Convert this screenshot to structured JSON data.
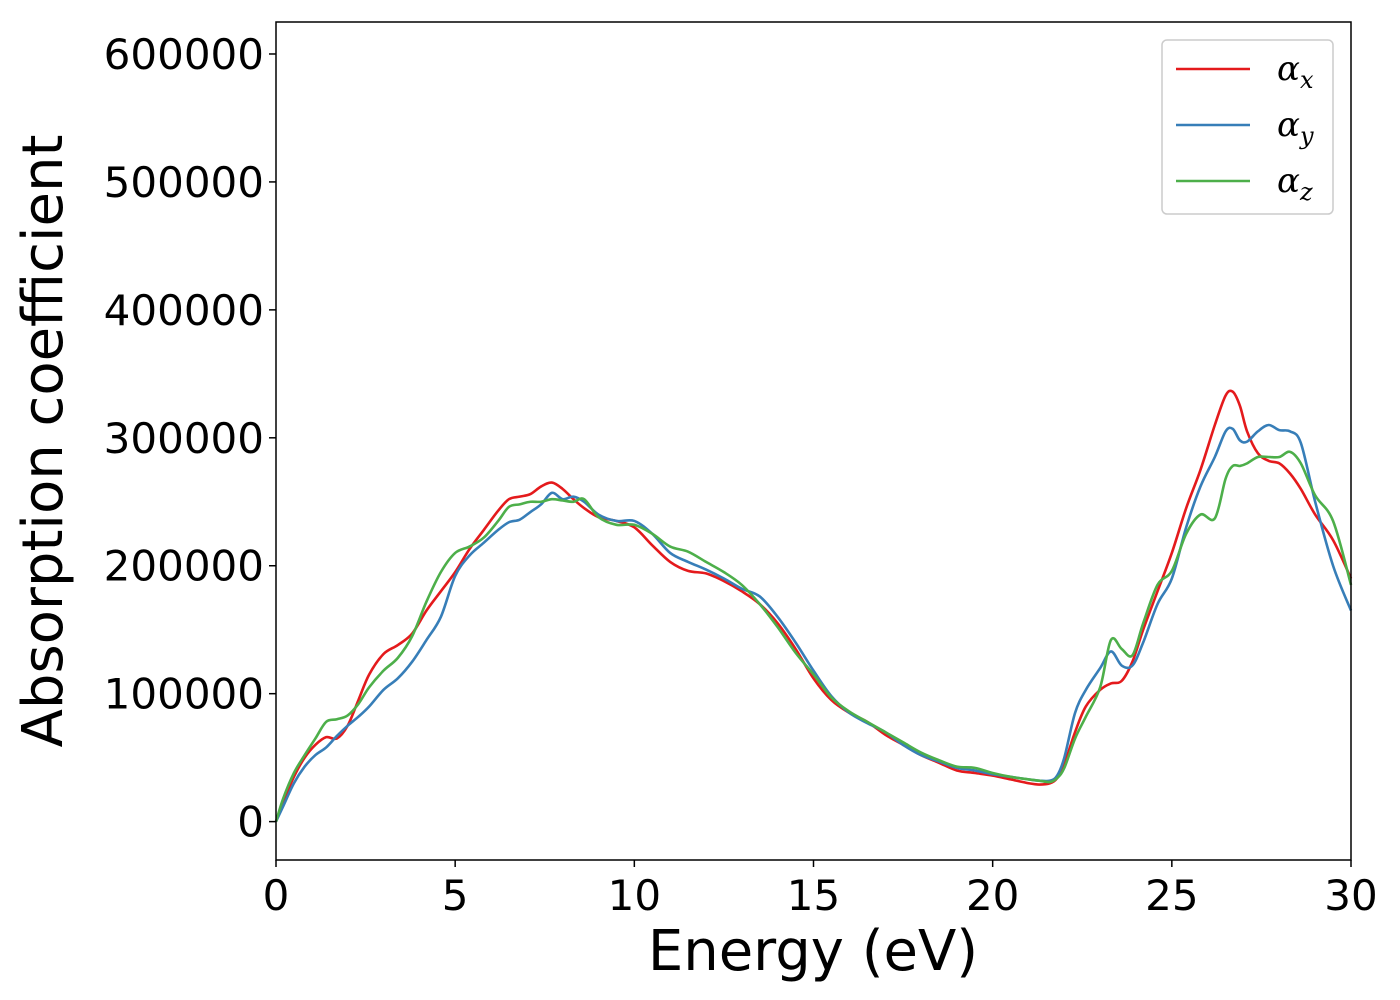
{
  "chart_data": {
    "type": "line",
    "title": "",
    "xlabel": "Energy (eV)",
    "ylabel": "Absorption coefficient",
    "xlim": [
      0,
      30
    ],
    "ylim": [
      -30000,
      625000
    ],
    "xticks": [
      0,
      5,
      10,
      15,
      20,
      25,
      30
    ],
    "xtick_labels": [
      "0",
      "5",
      "10",
      "15",
      "20",
      "25",
      "30"
    ],
    "yticks": [
      0,
      100000,
      200000,
      300000,
      400000,
      500000,
      600000
    ],
    "ytick_labels": [
      "0",
      "100000",
      "200000",
      "300000",
      "400000",
      "500000",
      "600000"
    ],
    "grid": false,
    "legend_position": "top-right",
    "series": [
      {
        "name": "αx",
        "symbol": "α",
        "subscript": "x",
        "color": "#e41a1c",
        "x": [
          0,
          0.2,
          0.5,
          0.8,
          1.1,
          1.4,
          1.7,
          2.0,
          2.3,
          2.6,
          3.0,
          3.4,
          3.8,
          4.2,
          4.6,
          5.0,
          5.4,
          5.8,
          6.2,
          6.5,
          6.8,
          7.1,
          7.4,
          7.7,
          8.0,
          8.3,
          8.6,
          9.0,
          9.5,
          10.0,
          10.5,
          11.0,
          11.5,
          12.0,
          12.5,
          13.0,
          13.5,
          14.0,
          14.5,
          15.0,
          15.5,
          16.0,
          16.5,
          17.0,
          17.5,
          18.0,
          18.5,
          19.0,
          19.5,
          20.0,
          20.5,
          21.0,
          21.3,
          21.6,
          21.8,
          22.0,
          22.3,
          22.6,
          23.0,
          23.3,
          23.6,
          23.9,
          24.2,
          24.6,
          25.0,
          25.4,
          25.8,
          26.2,
          26.5,
          26.7,
          26.9,
          27.1,
          27.4,
          27.7,
          28.0,
          28.3,
          28.6,
          29.0,
          29.5,
          30.0
        ],
        "y": [
          0,
          15000,
          35000,
          50000,
          60000,
          66000,
          65000,
          75000,
          95000,
          115000,
          131000,
          138000,
          147000,
          165000,
          180000,
          195000,
          213000,
          228000,
          243000,
          252000,
          254000,
          256000,
          262000,
          265000,
          260000,
          252000,
          245000,
          238000,
          235000,
          230000,
          216000,
          203000,
          196000,
          194000,
          188000,
          180000,
          170000,
          155000,
          135000,
          112000,
          95000,
          85000,
          78000,
          68000,
          60000,
          52000,
          46000,
          40000,
          38000,
          36000,
          33000,
          30000,
          29000,
          30000,
          34000,
          45000,
          70000,
          90000,
          103000,
          108000,
          110000,
          125000,
          150000,
          180000,
          210000,
          245000,
          275000,
          310000,
          333000,
          336000,
          325000,
          305000,
          288000,
          282000,
          280000,
          272000,
          260000,
          240000,
          220000,
          190000
        ]
      },
      {
        "name": "αy",
        "symbol": "α",
        "subscript": "y",
        "color": "#377eb8",
        "x": [
          0,
          0.2,
          0.5,
          0.8,
          1.1,
          1.4,
          1.7,
          2.0,
          2.3,
          2.6,
          3.0,
          3.4,
          3.8,
          4.2,
          4.6,
          5.0,
          5.4,
          5.8,
          6.2,
          6.5,
          6.8,
          7.1,
          7.4,
          7.7,
          8.0,
          8.3,
          8.6,
          9.0,
          9.5,
          10.0,
          10.5,
          11.0,
          11.5,
          12.0,
          12.5,
          13.0,
          13.5,
          14.0,
          14.5,
          15.0,
          15.5,
          16.0,
          16.5,
          17.0,
          17.5,
          18.0,
          18.5,
          19.0,
          19.5,
          20.0,
          20.5,
          21.0,
          21.3,
          21.6,
          21.8,
          22.0,
          22.3,
          22.6,
          23.0,
          23.3,
          23.6,
          23.9,
          24.2,
          24.6,
          25.0,
          25.4,
          25.8,
          26.2,
          26.5,
          26.7,
          26.9,
          27.1,
          27.4,
          27.7,
          28.0,
          28.3,
          28.6,
          29.0,
          29.5,
          30.0
        ],
        "y": [
          0,
          12000,
          30000,
          43000,
          52000,
          58000,
          67000,
          75000,
          82000,
          90000,
          103000,
          112000,
          125000,
          142000,
          160000,
          192000,
          208000,
          218000,
          228000,
          234000,
          236000,
          242000,
          248000,
          257000,
          252000,
          254000,
          250000,
          240000,
          235000,
          235000,
          225000,
          210000,
          203000,
          197000,
          190000,
          182000,
          176000,
          160000,
          140000,
          118000,
          98000,
          85000,
          77000,
          70000,
          60000,
          52000,
          47000,
          42000,
          40000,
          37000,
          35000,
          33000,
          32000,
          32000,
          36000,
          50000,
          85000,
          103000,
          120000,
          133000,
          122000,
          122000,
          140000,
          170000,
          190000,
          230000,
          262000,
          285000,
          305000,
          307000,
          298000,
          297000,
          305000,
          310000,
          306000,
          305000,
          296000,
          250000,
          200000,
          165000
        ]
      },
      {
        "name": "αz",
        "symbol": "α",
        "subscript": "z",
        "color": "#4daf4a",
        "x": [
          0,
          0.2,
          0.5,
          0.8,
          1.1,
          1.4,
          1.7,
          2.0,
          2.3,
          2.6,
          3.0,
          3.4,
          3.8,
          4.2,
          4.6,
          5.0,
          5.4,
          5.8,
          6.2,
          6.5,
          6.8,
          7.1,
          7.4,
          7.7,
          8.0,
          8.3,
          8.6,
          9.0,
          9.5,
          10.0,
          10.5,
          11.0,
          11.5,
          12.0,
          12.5,
          13.0,
          13.5,
          14.0,
          14.5,
          15.0,
          15.5,
          16.0,
          16.5,
          17.0,
          17.5,
          18.0,
          18.5,
          19.0,
          19.5,
          20.0,
          20.5,
          21.0,
          21.3,
          21.6,
          21.8,
          22.0,
          22.3,
          22.6,
          23.0,
          23.3,
          23.6,
          23.9,
          24.2,
          24.6,
          25.0,
          25.4,
          25.8,
          26.2,
          26.5,
          26.7,
          26.9,
          27.1,
          27.4,
          27.7,
          28.0,
          28.3,
          28.6,
          29.0,
          29.5,
          30.0
        ],
        "y": [
          0,
          18000,
          38000,
          52000,
          65000,
          78000,
          80000,
          83000,
          92000,
          105000,
          118000,
          128000,
          145000,
          172000,
          195000,
          210000,
          215000,
          222000,
          235000,
          246000,
          248000,
          250000,
          250000,
          252000,
          251000,
          250000,
          252000,
          238000,
          232000,
          232000,
          225000,
          215000,
          211000,
          203000,
          195000,
          185000,
          170000,
          152000,
          132000,
          115000,
          97000,
          86000,
          78000,
          70000,
          62000,
          54000,
          48000,
          43000,
          42000,
          38000,
          35000,
          33000,
          32000,
          31000,
          34000,
          42000,
          65000,
          82000,
          105000,
          142000,
          135000,
          130000,
          155000,
          185000,
          196000,
          225000,
          240000,
          237000,
          268000,
          278000,
          278000,
          280000,
          285000,
          285000,
          285000,
          289000,
          280000,
          255000,
          235000,
          185000
        ]
      }
    ]
  }
}
